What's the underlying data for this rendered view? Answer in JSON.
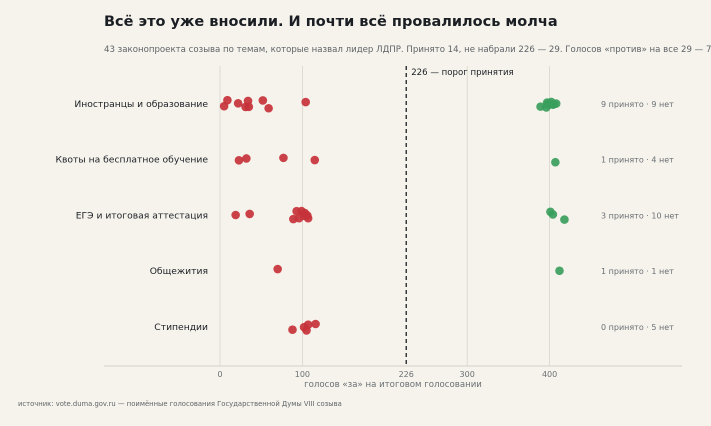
{
  "title": "Всё это уже вносили. И почти всё провалилось молча",
  "subtitle": "43 законопроекта созыва по темам, которые назвал лидер ЛДПР. Принято 14, не набрали 226 — 29. Голосов «против» на все 29 — 7",
  "source": "источник: vote.duma.gov.ru — поимённые голосования Государственной Думы VIII созыва",
  "chart_data": {
    "type": "scatter",
    "xlabel": "голосов «за» на итоговом голосовании",
    "xlim": [
      -45,
      420
    ],
    "xticks": [
      0,
      100,
      226,
      300,
      400
    ],
    "threshold": {
      "value": 226,
      "label": "226 — порог принятия"
    },
    "colors": {
      "failed": "#c5323a",
      "passed": "#3a9e5c",
      "grid": "#d9d5cd",
      "text": "#1b1f24",
      "muted": "#6b7074"
    },
    "categories": [
      "Иностранцы и образование",
      "Квоты на бесплатное обучение",
      "ЕГЭ и итоговая аттестация",
      "Общежития",
      "Стипендии"
    ],
    "summaries": [
      "9 принято · 9 нет",
      "1 принято · 4 нет",
      "3 принято · 10 нет",
      "1 принято · 1 нет",
      "0 принято · 5 нет"
    ],
    "series": [
      {
        "category": "Иностранцы и образование",
        "failed": [
          5,
          9,
          22,
          31,
          34,
          35,
          52,
          59,
          104
        ],
        "passed": [
          389,
          396,
          397,
          398,
          399,
          402,
          404,
          405,
          408
        ]
      },
      {
        "category": "Квоты на бесплатное обучение",
        "failed": [
          23,
          32,
          77,
          115
        ],
        "passed": [
          407
        ]
      },
      {
        "category": "ЕГЭ и итоговая аттестация",
        "failed": [
          19,
          36,
          89,
          93,
          96,
          99,
          102,
          103,
          106,
          107
        ],
        "passed": [
          401,
          404,
          418
        ]
      },
      {
        "category": "Общежития",
        "failed": [
          70
        ],
        "passed": [
          412
        ]
      },
      {
        "category": "Стипендии",
        "failed": [
          88,
          102,
          105,
          107,
          116
        ],
        "passed": []
      }
    ]
  }
}
